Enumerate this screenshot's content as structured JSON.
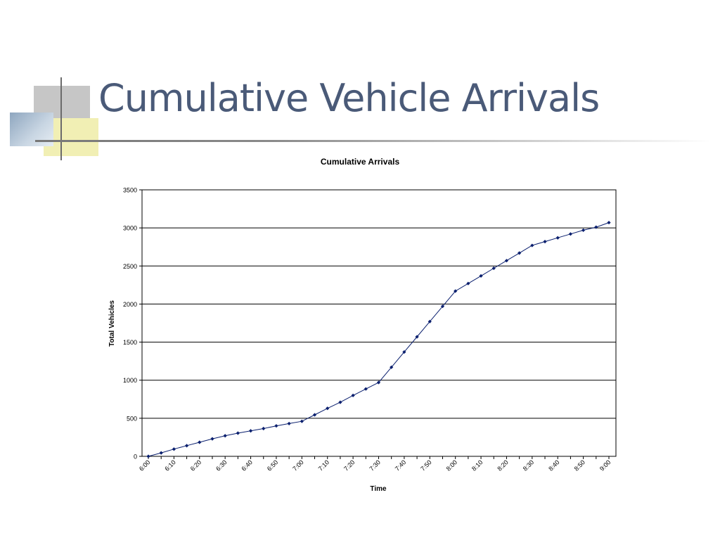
{
  "slide": {
    "title": "Cumulative Vehicle Arrivals"
  },
  "colors": {
    "title": "#4a5a78",
    "series": "#0a1f6e",
    "grid": "#000000"
  },
  "chart_data": {
    "type": "line",
    "title": "Cumulative Arrivals",
    "xlabel": "Time",
    "ylabel": "Total Vehicles",
    "ylim": [
      0,
      3500
    ],
    "yticks": [
      0,
      500,
      1000,
      1500,
      2000,
      2500,
      3000,
      3500
    ],
    "xtick_labels": [
      "6:00",
      "6:10",
      "6:20",
      "6:30",
      "6:40",
      "6:50",
      "7:00",
      "7:10",
      "7:20",
      "7:30",
      "7:40",
      "7:50",
      "8:00",
      "8:10",
      "8:20",
      "8:30",
      "8:40",
      "8:50",
      "9:00"
    ],
    "grid": "horizontal",
    "legend": "none",
    "marker": "diamond",
    "x": [
      "6:00",
      "6:05",
      "6:10",
      "6:15",
      "6:20",
      "6:25",
      "6:30",
      "6:35",
      "6:40",
      "6:45",
      "6:50",
      "6:55",
      "7:00",
      "7:05",
      "7:10",
      "7:15",
      "7:20",
      "7:25",
      "7:30",
      "7:35",
      "7:40",
      "7:45",
      "7:50",
      "7:55",
      "8:00",
      "8:05",
      "8:10",
      "8:15",
      "8:20",
      "8:25",
      "8:30",
      "8:35",
      "8:40",
      "8:45",
      "8:50",
      "8:55",
      "9:00"
    ],
    "series": [
      {
        "values": [
          0,
          45,
          95,
          140,
          185,
          230,
          270,
          305,
          335,
          365,
          400,
          430,
          460,
          545,
          630,
          710,
          800,
          885,
          970,
          1170,
          1370,
          1570,
          1770,
          1970,
          2170,
          2270,
          2370,
          2470,
          2570,
          2670,
          2770,
          2820,
          2870,
          2920,
          2970,
          3010,
          3070
        ]
      }
    ]
  }
}
